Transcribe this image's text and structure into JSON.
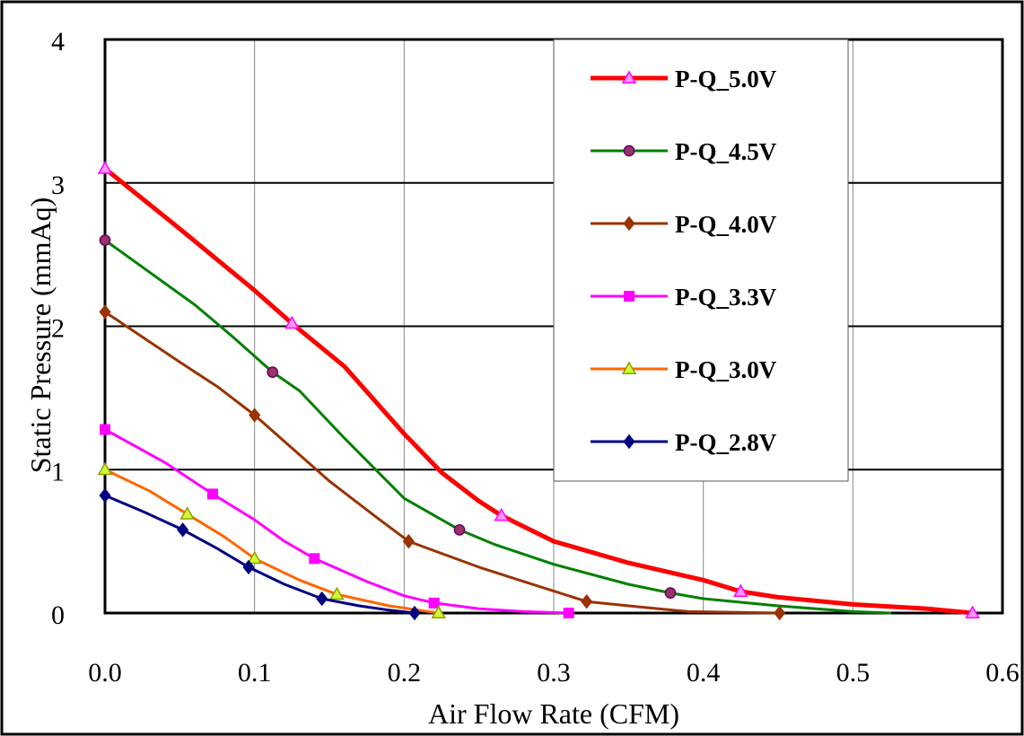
{
  "chart_data": {
    "type": "line",
    "xlabel": "Air Flow Rate (CFM)",
    "ylabel": "Static Pressure (mmAq)",
    "xlim": [
      0,
      0.6
    ],
    "ylim": [
      0,
      4
    ],
    "x_ticks": [
      "0.0",
      "0.1",
      "0.2",
      "0.3",
      "0.4",
      "0.5",
      "0.6"
    ],
    "y_ticks": [
      "0",
      "1",
      "2",
      "3",
      "4"
    ],
    "grid": true,
    "legend_position": "top-right inside",
    "series": [
      {
        "name": "P-Q_5.0V",
        "color": "#ff0000",
        "marker": "triangle",
        "marker_fill": "#ff99ff",
        "marker_stroke": "#ff00ff",
        "line_width": 5,
        "points": [
          [
            0.0,
            3.1
          ],
          [
            0.05,
            2.68
          ],
          [
            0.1,
            2.25
          ],
          [
            0.125,
            2.02
          ],
          [
            0.16,
            1.72
          ],
          [
            0.2,
            1.25
          ],
          [
            0.225,
            0.98
          ],
          [
            0.25,
            0.78
          ],
          [
            0.265,
            0.68
          ],
          [
            0.3,
            0.5
          ],
          [
            0.35,
            0.35
          ],
          [
            0.4,
            0.23
          ],
          [
            0.425,
            0.15
          ],
          [
            0.45,
            0.11
          ],
          [
            0.5,
            0.06
          ],
          [
            0.55,
            0.03
          ],
          [
            0.58,
            0.0
          ]
        ],
        "marker_points": [
          [
            0.0,
            3.1
          ],
          [
            0.125,
            2.02
          ],
          [
            0.265,
            0.68
          ],
          [
            0.425,
            0.15
          ],
          [
            0.58,
            0.0
          ]
        ]
      },
      {
        "name": "P-Q_4.5V",
        "color": "#008000",
        "marker": "circle",
        "marker_fill": "#993366",
        "marker_stroke": "#660066",
        "line_width": 3,
        "points": [
          [
            0.0,
            2.6
          ],
          [
            0.06,
            2.15
          ],
          [
            0.085,
            1.93
          ],
          [
            0.112,
            1.68
          ],
          [
            0.13,
            1.55
          ],
          [
            0.16,
            1.22
          ],
          [
            0.2,
            0.8
          ],
          [
            0.237,
            0.58
          ],
          [
            0.26,
            0.48
          ],
          [
            0.3,
            0.34
          ],
          [
            0.35,
            0.2
          ],
          [
            0.378,
            0.14
          ],
          [
            0.4,
            0.1
          ],
          [
            0.45,
            0.05
          ],
          [
            0.5,
            0.01
          ],
          [
            0.525,
            0.0
          ]
        ],
        "marker_points": [
          [
            0.0,
            2.6
          ],
          [
            0.112,
            1.68
          ],
          [
            0.237,
            0.58
          ],
          [
            0.378,
            0.14
          ]
        ]
      },
      {
        "name": "P-Q_4.0V",
        "color": "#993300",
        "marker": "diamond",
        "marker_fill": "#993300",
        "marker_stroke": "#993300",
        "line_width": 3,
        "points": [
          [
            0.0,
            2.1
          ],
          [
            0.05,
            1.75
          ],
          [
            0.075,
            1.58
          ],
          [
            0.1,
            1.38
          ],
          [
            0.15,
            0.92
          ],
          [
            0.18,
            0.68
          ],
          [
            0.203,
            0.5
          ],
          [
            0.25,
            0.32
          ],
          [
            0.28,
            0.22
          ],
          [
            0.322,
            0.08
          ],
          [
            0.36,
            0.04
          ],
          [
            0.39,
            0.01
          ],
          [
            0.451,
            0.0
          ]
        ],
        "marker_points": [
          [
            0.0,
            2.1
          ],
          [
            0.1,
            1.38
          ],
          [
            0.203,
            0.5
          ],
          [
            0.322,
            0.08
          ],
          [
            0.451,
            0.0
          ]
        ]
      },
      {
        "name": "P-Q_3.3V",
        "color": "#ff00ff",
        "marker": "square",
        "marker_fill": "#ff00ff",
        "marker_stroke": "#ff00ff",
        "line_width": 3,
        "points": [
          [
            0.0,
            1.28
          ],
          [
            0.04,
            1.05
          ],
          [
            0.072,
            0.83
          ],
          [
            0.1,
            0.65
          ],
          [
            0.12,
            0.5
          ],
          [
            0.14,
            0.38
          ],
          [
            0.175,
            0.22
          ],
          [
            0.2,
            0.12
          ],
          [
            0.22,
            0.07
          ],
          [
            0.25,
            0.03
          ],
          [
            0.28,
            0.01
          ],
          [
            0.31,
            0.0
          ]
        ],
        "marker_points": [
          [
            0.0,
            1.28
          ],
          [
            0.072,
            0.83
          ],
          [
            0.14,
            0.38
          ],
          [
            0.22,
            0.07
          ],
          [
            0.31,
            0.0
          ]
        ]
      },
      {
        "name": "P-Q_3.0V",
        "color": "#ff6600",
        "marker": "triangle",
        "marker_fill": "#ccff33",
        "marker_stroke": "#999900",
        "line_width": 3,
        "points": [
          [
            0.0,
            1.0
          ],
          [
            0.03,
            0.85
          ],
          [
            0.055,
            0.69
          ],
          [
            0.08,
            0.53
          ],
          [
            0.1,
            0.38
          ],
          [
            0.13,
            0.23
          ],
          [
            0.155,
            0.13
          ],
          [
            0.19,
            0.05
          ],
          [
            0.21,
            0.02
          ],
          [
            0.223,
            0.0
          ]
        ],
        "marker_points": [
          [
            0.0,
            1.0
          ],
          [
            0.055,
            0.69
          ],
          [
            0.1,
            0.38
          ],
          [
            0.155,
            0.13
          ],
          [
            0.223,
            0.0
          ]
        ]
      },
      {
        "name": "P-Q_2.8V",
        "color": "#000080",
        "marker": "diamond",
        "marker_fill": "#000080",
        "marker_stroke": "#000080",
        "line_width": 3,
        "points": [
          [
            0.0,
            0.82
          ],
          [
            0.025,
            0.71
          ],
          [
            0.052,
            0.58
          ],
          [
            0.075,
            0.45
          ],
          [
            0.096,
            0.32
          ],
          [
            0.12,
            0.2
          ],
          [
            0.145,
            0.1
          ],
          [
            0.17,
            0.05
          ],
          [
            0.19,
            0.02
          ],
          [
            0.207,
            0.0
          ]
        ],
        "marker_points": [
          [
            0.0,
            0.82
          ],
          [
            0.052,
            0.58
          ],
          [
            0.096,
            0.32
          ],
          [
            0.145,
            0.1
          ],
          [
            0.207,
            0.0
          ]
        ]
      }
    ]
  }
}
